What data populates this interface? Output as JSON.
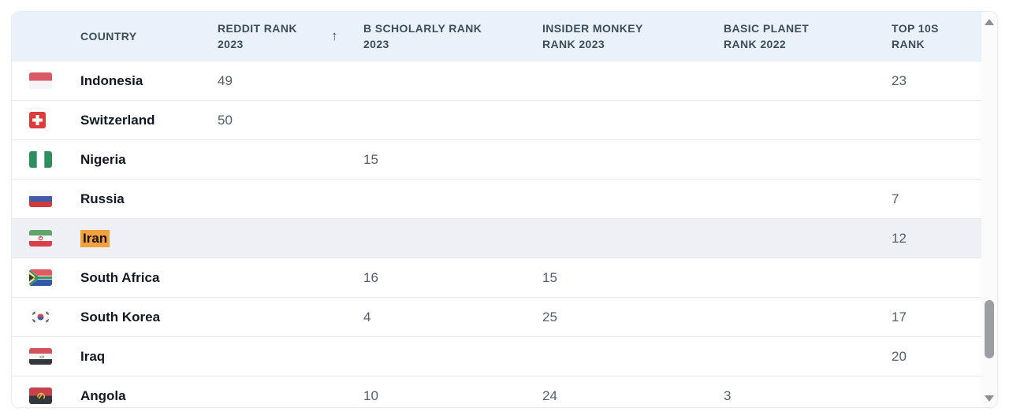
{
  "table": {
    "columns": {
      "country": "COUNTRY",
      "reddit": "REDDIT RANK 2023",
      "bscholarly": "B SCHOLARLY RANK 2023",
      "insider": "INSIDER MONKEY RANK 2023",
      "basic": "BASIC PLANET RANK 2022",
      "top10s": "TOP 10S RANK"
    },
    "sort": {
      "column": "reddit",
      "direction": "ascending",
      "indicator": "↑"
    },
    "rows": [
      {
        "country": "Indonesia",
        "flag": "indonesia-flag",
        "reddit": "49",
        "bscholarly": "",
        "insider": "",
        "basic": "",
        "top10s": "23",
        "highlighted": false,
        "match_highlight": false
      },
      {
        "country": "Switzerland",
        "flag": "switzerland-flag",
        "reddit": "50",
        "bscholarly": "",
        "insider": "",
        "basic": "",
        "top10s": "",
        "highlighted": false,
        "match_highlight": false
      },
      {
        "country": "Nigeria",
        "flag": "nigeria-flag",
        "reddit": "",
        "bscholarly": "15",
        "insider": "",
        "basic": "",
        "top10s": "",
        "highlighted": false,
        "match_highlight": false
      },
      {
        "country": "Russia",
        "flag": "russia-flag",
        "reddit": "",
        "bscholarly": "",
        "insider": "",
        "basic": "",
        "top10s": "7",
        "highlighted": false,
        "match_highlight": false
      },
      {
        "country": "Iran",
        "flag": "iran-flag",
        "reddit": "",
        "bscholarly": "",
        "insider": "",
        "basic": "",
        "top10s": "12",
        "highlighted": true,
        "match_highlight": true
      },
      {
        "country": "South Africa",
        "flag": "south-africa-flag",
        "reddit": "",
        "bscholarly": "16",
        "insider": "15",
        "basic": "",
        "top10s": "",
        "highlighted": false,
        "match_highlight": false
      },
      {
        "country": "South Korea",
        "flag": "south-korea-flag",
        "reddit": "",
        "bscholarly": "4",
        "insider": "25",
        "basic": "",
        "top10s": "17",
        "highlighted": false,
        "match_highlight": false
      },
      {
        "country": "Iraq",
        "flag": "iraq-flag",
        "reddit": "",
        "bscholarly": "",
        "insider": "",
        "basic": "",
        "top10s": "20",
        "highlighted": false,
        "match_highlight": false
      },
      {
        "country": "Angola",
        "flag": "angola-flag",
        "reddit": "",
        "bscholarly": "10",
        "insider": "24",
        "basic": "3",
        "top10s": "",
        "highlighted": false,
        "match_highlight": false
      }
    ]
  },
  "colors": {
    "header_bg": "#e9f2fb",
    "active_row_bg": "#eef0f5",
    "find_highlight": "#f5a13b",
    "scroll_thumb": "#9b9fa4"
  }
}
